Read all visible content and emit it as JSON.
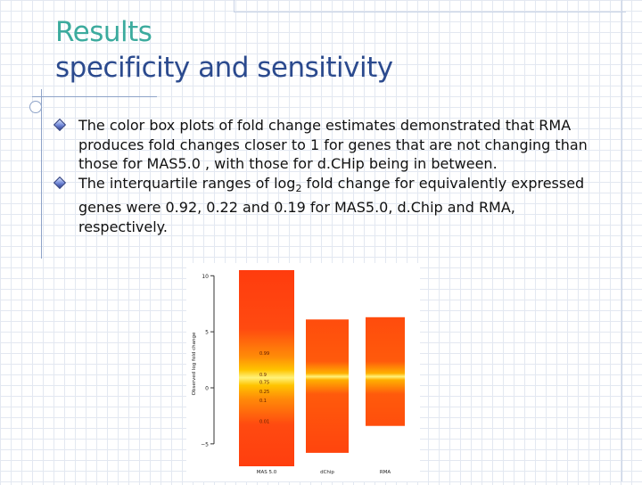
{
  "slide": {
    "title_line1": "Results",
    "title_line2": "specificity and sensitivity"
  },
  "bullets": [
    {
      "text": "The color box plots of fold change estimates demonstrated that RMA produces fold changes closer to 1 for genes that are not changing than those for MAS5.0 , with those for d.CHip being in between."
    },
    {
      "before": "The interquartile ranges of log",
      "subscript": "2",
      "after": " fold change for equivalently expressed genes were 0.92, 0.22 and 0.19 for MAS5.0, d.Chip and RMA, respectively."
    }
  ],
  "chart_data": {
    "type": "box",
    "categories": [
      "MAS 5.0",
      "dChip",
      "RMA"
    ],
    "ylabel": "Observed log fold change",
    "ylim": [
      -7,
      10.5
    ],
    "yticks": [
      10,
      5,
      0,
      -5
    ],
    "ytick_labels": [
      "10",
      "5",
      "0",
      "−5"
    ],
    "ranges": [
      {
        "name": "MAS 5.0",
        "min": -7.5,
        "max": 10.5,
        "center": 0
      },
      {
        "name": "dChip",
        "min": -5.8,
        "max": 6.1,
        "center": 0
      },
      {
        "name": "RMA",
        "min": -3.4,
        "max": 6.3,
        "center": 0
      }
    ],
    "annotations": [
      {
        "category": "MAS 5.0",
        "y": 3.1,
        "text": "0.99"
      },
      {
        "category": "MAS 5.0",
        "y": 1.2,
        "text": "0.9"
      },
      {
        "category": "MAS 5.0",
        "y": 0.5,
        "text": "0.75"
      },
      {
        "category": "MAS 5.0",
        "y": -0.3,
        "text": "0.25"
      },
      {
        "category": "MAS 5.0",
        "y": -1.1,
        "text": "0.1"
      },
      {
        "category": "MAS 5.0",
        "y": -3.0,
        "text": "0.01"
      }
    ],
    "colors": {
      "outer": "#ff3a0e",
      "inner": "#ffc400",
      "center": "#fff27a"
    }
  }
}
